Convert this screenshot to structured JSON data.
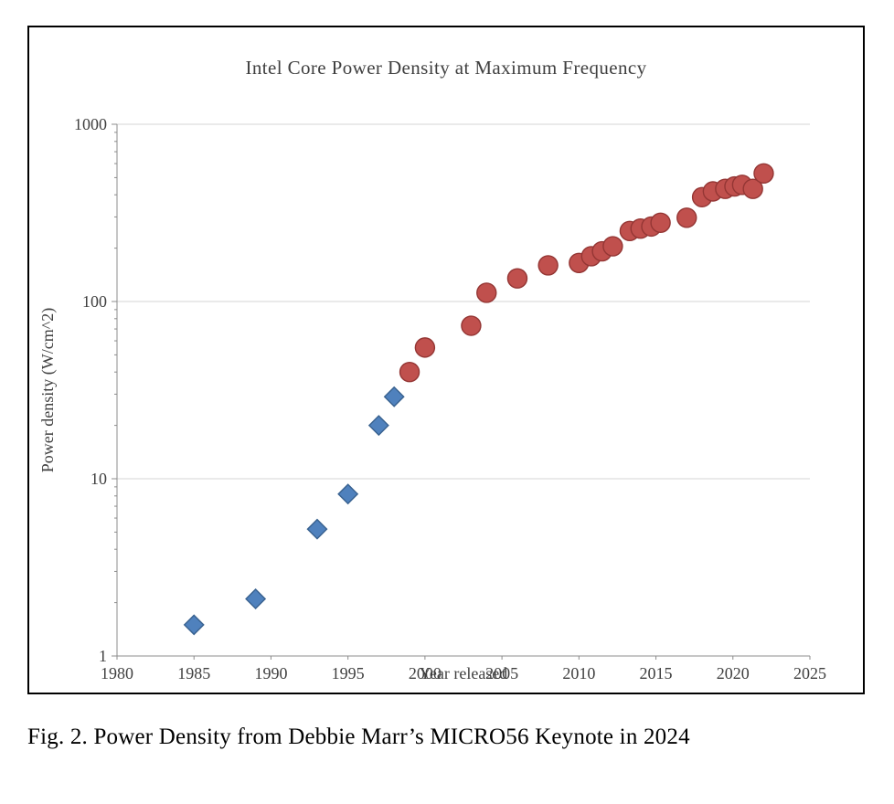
{
  "figure": {
    "caption": "Fig. 2. Power Density from Debbie Marr’s MICRO56 Keynote in 2024"
  },
  "chart_data": {
    "type": "scatter",
    "title": "Intel Core Power Density at Maximum Frequency",
    "xlabel": "Year released",
    "ylabel": "Power density (W/cm^2)",
    "x_scale": "linear",
    "y_scale": "log",
    "xlim": [
      1980,
      2025
    ],
    "ylim": [
      1,
      1000
    ],
    "x_ticks": [
      1980,
      1985,
      1990,
      1995,
      2000,
      2005,
      2010,
      2015,
      2020,
      2025
    ],
    "y_ticks": [
      1,
      10,
      100,
      1000
    ],
    "grid": "horizontal-only",
    "legend": "none",
    "series": [
      {
        "name": "early-cores-diamond",
        "marker": "diamond",
        "color": "#4f81bd",
        "edge_color": "#38618f",
        "points": [
          [
            1985,
            1.5
          ],
          [
            1989,
            2.1
          ],
          [
            1993,
            5.2
          ],
          [
            1995,
            8.2
          ],
          [
            1997,
            20
          ],
          [
            1998,
            29
          ]
        ]
      },
      {
        "name": "later-cores-circle",
        "marker": "circle",
        "color": "#c0504d",
        "edge_color": "#943634",
        "points": [
          [
            1999,
            40
          ],
          [
            2000,
            55
          ],
          [
            2003,
            73
          ],
          [
            2004,
            112
          ],
          [
            2006,
            135
          ],
          [
            2008,
            160
          ],
          [
            2010,
            165
          ],
          [
            2010.8,
            180
          ],
          [
            2011.5,
            192
          ],
          [
            2012.2,
            205
          ],
          [
            2013.3,
            250
          ],
          [
            2014,
            258
          ],
          [
            2014.7,
            265
          ],
          [
            2015.3,
            278
          ],
          [
            2017,
            297
          ],
          [
            2018,
            388
          ],
          [
            2018.7,
            418
          ],
          [
            2019.5,
            432
          ],
          [
            2020.1,
            446
          ],
          [
            2020.6,
            455
          ],
          [
            2021.3,
            432
          ],
          [
            2022,
            528
          ]
        ]
      }
    ]
  },
  "colors": {
    "background": "#ffffff",
    "figure_border": "#000000",
    "grid": "#d6d6d6",
    "axis": "#8c8c8c",
    "text": "#404040",
    "caption_text": "#000000"
  }
}
